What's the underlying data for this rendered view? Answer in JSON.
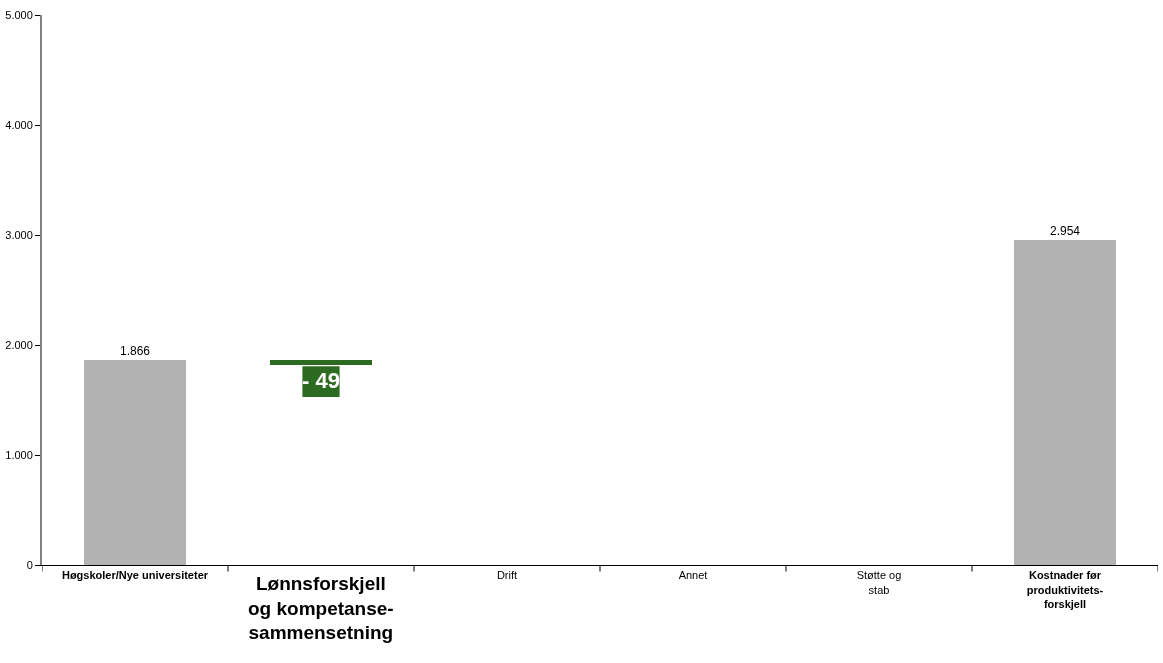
{
  "chart_data": {
    "type": "bar",
    "categories": [
      "Høgskoler/Nye universiteter",
      "Lønnsforskjell\nog kompetanse-\nsammensetning",
      "Drift",
      "Annet",
      "Støtte og\nstab",
      "Kostnader før\nproduktivitets-\nforskjell"
    ],
    "values": [
      1866,
      -49,
      null,
      null,
      null,
      2954
    ],
    "base": [
      null,
      1866,
      null,
      null,
      null,
      null
    ],
    "colors": [
      "#b3b3b3",
      "#2e6b22",
      null,
      null,
      null,
      "#b3b3b3"
    ],
    "value_labels": [
      "1.866",
      "- 49",
      null,
      null,
      null,
      "2.954"
    ],
    "ylim": [
      0,
      5000
    ],
    "yticks": [
      {
        "value": 0,
        "label": "0"
      },
      {
        "value": 1000,
        "label": "1.000"
      },
      {
        "value": 2000,
        "label": "2.000"
      },
      {
        "value": 3000,
        "label": "3.000"
      },
      {
        "value": 4000,
        "label": "4.000"
      },
      {
        "value": 5000,
        "label": "5.000"
      }
    ],
    "grid": false
  }
}
